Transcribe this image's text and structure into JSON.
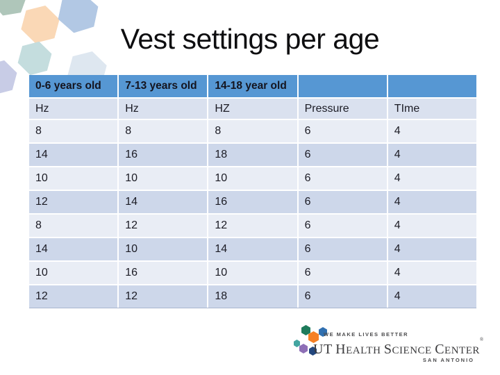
{
  "slide": {
    "title": "Vest settings per age"
  },
  "table": {
    "columns": [
      "0-6 years old",
      "7-13 years old",
      "14-18 year old",
      "",
      ""
    ],
    "subheaders": [
      "Hz",
      "Hz",
      "HZ",
      "Pressure",
      "TIme"
    ],
    "rows": [
      [
        "8",
        "8",
        "8",
        "6",
        "4"
      ],
      [
        "14",
        "16",
        "18",
        "6",
        "4"
      ],
      [
        "10",
        "10",
        "10",
        "6",
        "4"
      ],
      [
        "12",
        "14",
        "16",
        "6",
        "4"
      ],
      [
        "8",
        "12",
        "12",
        "6",
        "4"
      ],
      [
        "14",
        "10",
        "14",
        "6",
        "4"
      ],
      [
        "10",
        "16",
        "10",
        "6",
        "4"
      ],
      [
        "12",
        "12",
        "18",
        "6",
        "4"
      ]
    ]
  },
  "logo": {
    "tagline": "WE MAKE LIVES BETTER",
    "name": "UT Health Science Center",
    "registered": "®",
    "city": "SAN ANTONIO"
  },
  "colors": {
    "table": {
      "header": "#5697D3",
      "subheader_band": "#DAE1EF",
      "band_light": "#E9EDF5",
      "band_dark": "#CDD7EA",
      "grid": "#FFFFFF"
    },
    "decor_hexagons": [
      "#AFC6BA",
      "#FAD8B6",
      "#B2C8E4",
      "#C4DDDE",
      "#C8CCE6",
      "#DEE7F0"
    ],
    "logo_hexagons": [
      "#1E7B5B",
      "#F58025",
      "#2F6FB0",
      "#43A5A1",
      "#8E6FB6",
      "#23477E"
    ]
  }
}
